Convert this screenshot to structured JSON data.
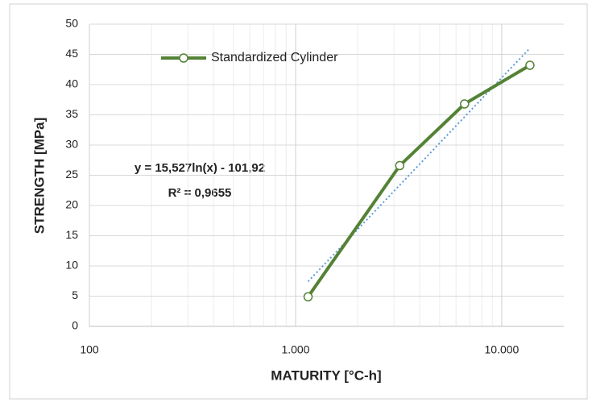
{
  "chart_data": {
    "type": "line",
    "xlabel": "MATURITY [°C-h]",
    "ylabel": "STRENGTH [MPa]",
    "x": [
      1150,
      3200,
      6600,
      13700
    ],
    "series": [
      {
        "name": "Standardized Cylinder",
        "color": "#548235",
        "values": [
          4.9,
          26.6,
          36.8,
          43.2
        ]
      }
    ],
    "xscale": "log",
    "xlim": [
      100,
      20000
    ],
    "xticks": [
      {
        "value": 100,
        "label": "100"
      },
      {
        "value": 1000,
        "label": "1.000"
      },
      {
        "value": 10000,
        "label": "10.000"
      }
    ],
    "ylim": [
      0,
      50
    ],
    "yticks": [
      0,
      5,
      10,
      15,
      20,
      25,
      30,
      35,
      40,
      45,
      50
    ],
    "grid": true,
    "minor_grid": true,
    "legend": "top-left",
    "trendline_color": "#5b9bd5",
    "annotations": [
      "y = 15,527ln(x) - 101,92",
      "R² = 0,9655"
    ]
  }
}
